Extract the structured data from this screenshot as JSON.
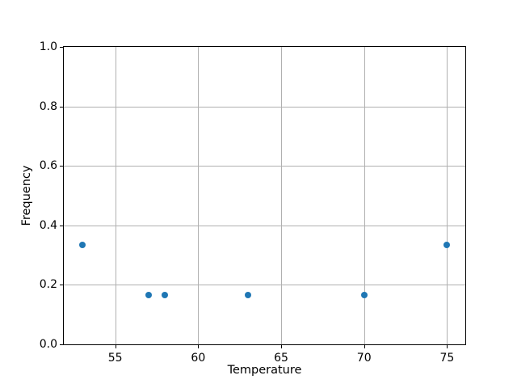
{
  "chart_data": {
    "type": "scatter",
    "title": "",
    "xlabel": "Temperature",
    "ylabel": "Frequency",
    "points": [
      {
        "x": 53,
        "y": 0.333
      },
      {
        "x": 57,
        "y": 0.167
      },
      {
        "x": 58,
        "y": 0.167
      },
      {
        "x": 63,
        "y": 0.167
      },
      {
        "x": 70,
        "y": 0.167
      },
      {
        "x": 75,
        "y": 0.333
      }
    ],
    "xlim": [
      51.9,
      76.1
    ],
    "ylim": [
      0.0,
      1.0
    ],
    "xticks": [
      55,
      60,
      65,
      70,
      75
    ],
    "yticks": [
      0.0,
      0.2,
      0.4,
      0.6,
      0.8,
      1.0
    ],
    "ytick_decimals": 1,
    "grid": true,
    "legend": null,
    "marker": "o",
    "colors": {
      "point": "#1f77b4",
      "grid": "#b0b0b0",
      "spine": "#000000",
      "background": "#ffffff",
      "text": "#000000"
    }
  }
}
